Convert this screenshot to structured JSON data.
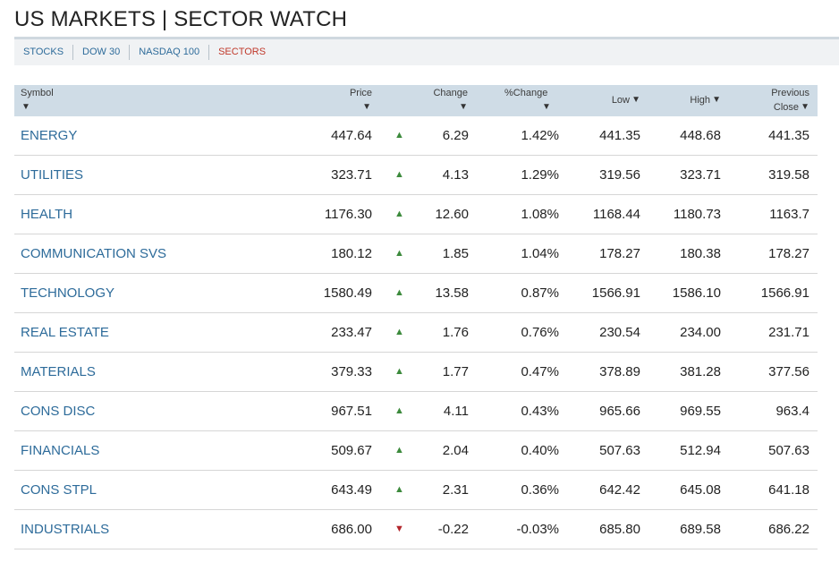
{
  "header": {
    "title": "US MARKETS | SECTOR WATCH"
  },
  "nav": {
    "items": [
      {
        "label": "STOCKS",
        "active": false
      },
      {
        "label": "DOW 30",
        "active": false
      },
      {
        "label": "NASDAQ 100",
        "active": false
      },
      {
        "label": "SECTORS",
        "active": true
      }
    ]
  },
  "table": {
    "columns": {
      "symbol": "Symbol",
      "price": "Price",
      "change": "Change",
      "pct_change": "%Change",
      "low": "Low",
      "high": "High",
      "prev_close_line1": "Previous",
      "prev_close_line2": "Close"
    },
    "sort_glyph": "▼",
    "up_glyph": "▲",
    "down_glyph": "▼",
    "rows": [
      {
        "symbol": "ENERGY",
        "price": "447.64",
        "direction": "up",
        "change": "6.29",
        "pct_change": "1.42%",
        "low": "441.35",
        "high": "448.68",
        "prev_close": "441.35"
      },
      {
        "symbol": "UTILITIES",
        "price": "323.71",
        "direction": "up",
        "change": "4.13",
        "pct_change": "1.29%",
        "low": "319.56",
        "high": "323.71",
        "prev_close": "319.58"
      },
      {
        "symbol": "HEALTH",
        "price": "1176.30",
        "direction": "up",
        "change": "12.60",
        "pct_change": "1.08%",
        "low": "1168.44",
        "high": "1180.73",
        "prev_close": "1163.7"
      },
      {
        "symbol": "COMMUNICATION SVS",
        "price": "180.12",
        "direction": "up",
        "change": "1.85",
        "pct_change": "1.04%",
        "low": "178.27",
        "high": "180.38",
        "prev_close": "178.27"
      },
      {
        "symbol": "TECHNOLOGY",
        "price": "1580.49",
        "direction": "up",
        "change": "13.58",
        "pct_change": "0.87%",
        "low": "1566.91",
        "high": "1586.10",
        "prev_close": "1566.91"
      },
      {
        "symbol": "REAL ESTATE",
        "price": "233.47",
        "direction": "up",
        "change": "1.76",
        "pct_change": "0.76%",
        "low": "230.54",
        "high": "234.00",
        "prev_close": "231.71"
      },
      {
        "symbol": "MATERIALS",
        "price": "379.33",
        "direction": "up",
        "change": "1.77",
        "pct_change": "0.47%",
        "low": "378.89",
        "high": "381.28",
        "prev_close": "377.56"
      },
      {
        "symbol": "CONS DISC",
        "price": "967.51",
        "direction": "up",
        "change": "4.11",
        "pct_change": "0.43%",
        "low": "965.66",
        "high": "969.55",
        "prev_close": "963.4"
      },
      {
        "symbol": "FINANCIALS",
        "price": "509.67",
        "direction": "up",
        "change": "2.04",
        "pct_change": "0.40%",
        "low": "507.63",
        "high": "512.94",
        "prev_close": "507.63"
      },
      {
        "symbol": "CONS STPL",
        "price": "643.49",
        "direction": "up",
        "change": "2.31",
        "pct_change": "0.36%",
        "low": "642.42",
        "high": "645.08",
        "prev_close": "641.18"
      },
      {
        "symbol": "INDUSTRIALS",
        "price": "686.00",
        "direction": "down",
        "change": "-0.22",
        "pct_change": "-0.03%",
        "low": "685.80",
        "high": "689.58",
        "prev_close": "686.22"
      }
    ]
  }
}
